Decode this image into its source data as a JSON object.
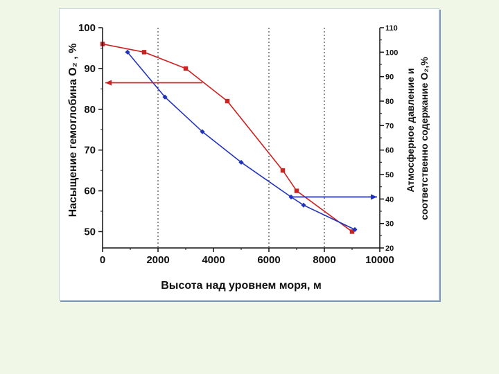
{
  "chart_data": {
    "type": "line",
    "xlabel": "Высота над уровнем моря, м",
    "ylabel_left": "Насыщение гемоглобина O₂ , %",
    "ylabel_right_line1": "Атмосферное давление и",
    "ylabel_right_line2": "соответственно содержание O₂,%",
    "xlim": [
      0,
      10000
    ],
    "ylim_left": [
      46,
      100
    ],
    "ylim_right": [
      20,
      110
    ],
    "x_ticks": [
      0,
      2000,
      4000,
      6000,
      8000,
      10000
    ],
    "y_left_ticks": [
      50,
      60,
      70,
      80,
      90,
      100
    ],
    "y_right_ticks": [
      20,
      30,
      40,
      50,
      60,
      70,
      80,
      90,
      100,
      110
    ],
    "vertical_dotted_lines_x": [
      2000,
      6000,
      8000
    ],
    "series": [
      {
        "color": "#cc2222",
        "marker": "square",
        "axis": "left",
        "x": [
          0,
          1500,
          3000,
          4500,
          6500,
          7000,
          9000
        ],
        "y": [
          96,
          94,
          90,
          82,
          65,
          60,
          50
        ]
      },
      {
        "color": "#2233bb",
        "marker": "diamond",
        "axis": "left",
        "x": [
          900,
          2250,
          3600,
          5000,
          6800,
          7250,
          9100
        ],
        "y": [
          94,
          83,
          74.5,
          67,
          58.5,
          56.5,
          50.5
        ]
      }
    ],
    "annotations": [
      {
        "kind": "arrow",
        "color": "#cc2222",
        "direction": "left",
        "axis": "left",
        "x_from": 3600,
        "x_to": 100,
        "y": 86.5
      },
      {
        "kind": "arrow",
        "color": "#2233bb",
        "direction": "right",
        "axis": "left",
        "x_from": 6800,
        "x_to": 9900,
        "y": 58.5
      }
    ]
  }
}
